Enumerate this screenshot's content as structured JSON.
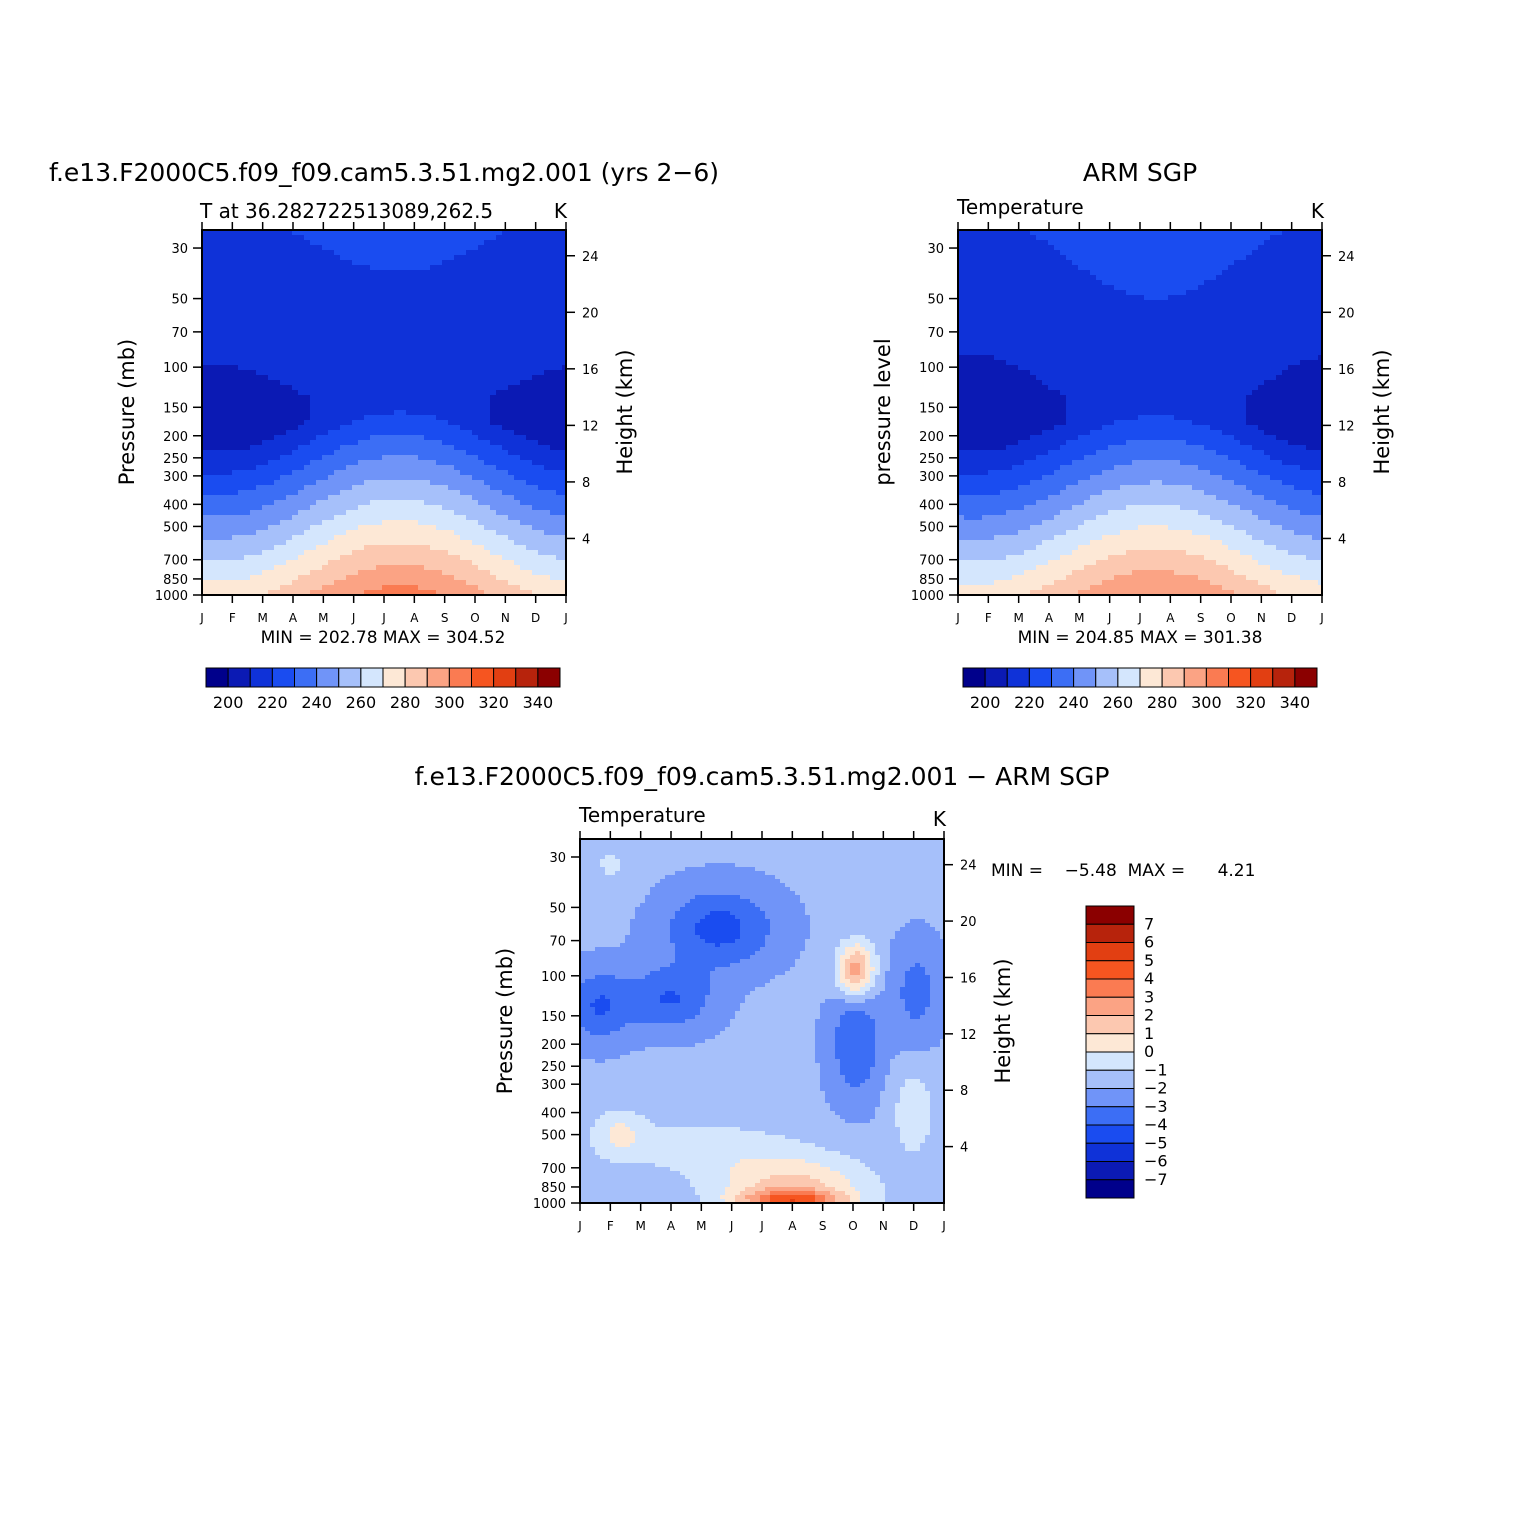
{
  "chart_data": [
    {
      "type": "contour",
      "title": "f.e13.F2000C5.f09_f09.cam5.3.51.mg2.001 (yrs 2−6)",
      "left_label": "T at  36.282722513089,262.5",
      "right_label": "K",
      "ylabel": "Pressure (mb)",
      "y2label": "Height (km)",
      "stats": "MIN = 202.78  MAX = 304.52",
      "x_ticks": [
        "J",
        "F",
        "M",
        "A",
        "M",
        "J",
        "J",
        "A",
        "S",
        "O",
        "N",
        "D",
        "J"
      ],
      "pressure_ticks": [
        30,
        50,
        70,
        100,
        150,
        200,
        250,
        300,
        400,
        500,
        700,
        850,
        1000
      ],
      "height_ticks": [
        4,
        8,
        12,
        16,
        20,
        24
      ],
      "colorbar_labels": [
        200,
        220,
        240,
        260,
        280,
        300,
        320,
        340
      ],
      "contour_levels": [
        190,
        200,
        210,
        220,
        230,
        240,
        250,
        260,
        270,
        280,
        290,
        300,
        310,
        320,
        330,
        340,
        350
      ],
      "colors": [
        "#00008b",
        "#0b1ab4",
        "#0f32d8",
        "#1a4cf0",
        "#3c6ef5",
        "#7094f8",
        "#a6c0fa",
        "#d4e6fd",
        "#fde8d6",
        "#fcc8b0",
        "#fba384",
        "#fa7b52",
        "#f65520",
        "#e23f12",
        "#b7230c",
        "#8b0000"
      ]
    },
    {
      "type": "contour",
      "title": "ARM SGP",
      "left_label": "Temperature",
      "right_label": "K",
      "ylabel": "pressure level",
      "y2label": "Height (km)",
      "stats": "MIN = 204.85  MAX = 301.38",
      "x_ticks": [
        "J",
        "F",
        "M",
        "A",
        "M",
        "J",
        "J",
        "A",
        "S",
        "O",
        "N",
        "D",
        "J"
      ],
      "pressure_ticks": [
        30,
        50,
        70,
        100,
        150,
        200,
        250,
        300,
        400,
        500,
        700,
        850,
        1000
      ],
      "height_ticks": [
        4,
        8,
        12,
        16,
        20,
        24
      ],
      "colorbar_labels": [
        200,
        220,
        240,
        260,
        280,
        300,
        320,
        340
      ]
    },
    {
      "type": "contour",
      "title": "f.e13.F2000C5.f09_f09.cam5.3.51.mg2.001 − ARM SGP",
      "left_label": "Temperature",
      "right_label": "K",
      "ylabel": "Pressure (mb)",
      "y2label": "Height (km)",
      "stats": "MIN =    −5.48  MAX =      4.21",
      "x_ticks": [
        "J",
        "F",
        "M",
        "A",
        "M",
        "J",
        "J",
        "A",
        "S",
        "O",
        "N",
        "D",
        "J"
      ],
      "pressure_ticks": [
        30,
        50,
        70,
        100,
        150,
        200,
        250,
        300,
        400,
        500,
        700,
        850,
        1000
      ],
      "height_ticks": [
        4,
        8,
        12,
        16,
        20,
        24
      ],
      "colorbar_labels": [
        "7",
        "6",
        "5",
        "4",
        "3",
        "2",
        "1",
        "0",
        "−1",
        "−2",
        "−3",
        "−4",
        "−5",
        "−6",
        "−7"
      ],
      "contour_levels": [
        -8,
        -7,
        -6,
        -5,
        -4,
        -3,
        -2,
        -1,
        0,
        1,
        2,
        3,
        4,
        5,
        6,
        7,
        8
      ],
      "colors": [
        "#00008b",
        "#0b1ab4",
        "#0f32d8",
        "#1a4cf0",
        "#3c6ef5",
        "#7094f8",
        "#a6c0fa",
        "#d4e6fd",
        "#fde8d6",
        "#fcc8b0",
        "#fba384",
        "#fa7b52",
        "#f65520",
        "#e23f12",
        "#b7230c",
        "#8b0000"
      ]
    }
  ]
}
